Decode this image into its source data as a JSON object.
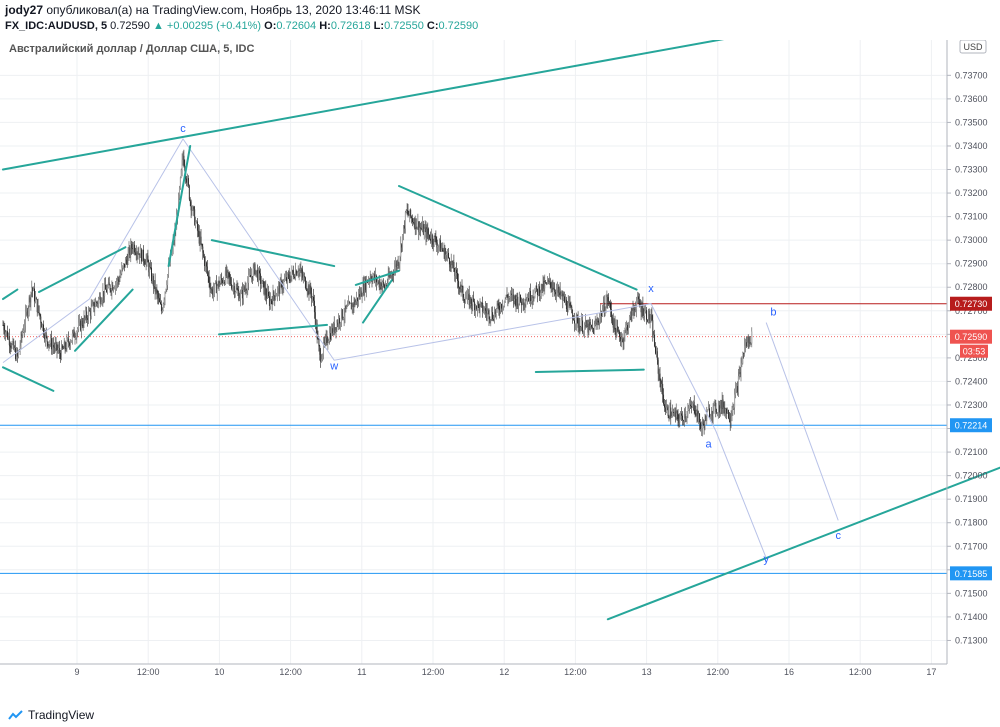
{
  "header": {
    "user": "jody27",
    "published_text": "опубликовал(а) на TradingView.com, Ноябрь 13, 2020 13:46:11 MSK",
    "symbol": "FX_IDC:AUDUSD, 5",
    "last": "0.72590",
    "change": "▲ +0.00295 (+0.41%)",
    "o_label": "O:",
    "o": "0.72604",
    "h_label": "H:",
    "h": "0.72618",
    "l_label": "L:",
    "l": "0.72550",
    "c_label": "C:",
    "c": "0.72590"
  },
  "footer": {
    "brand": "TradingView"
  },
  "chart_data": {
    "type": "candlestick",
    "title": "Австралийский доллар / Доллар США, 5, IDC",
    "currency_badge": "USD",
    "ylim": [
      0.712,
      0.7385
    ],
    "y_ticks": [
      "0.71300",
      "0.71400",
      "0.71500",
      "0.71600",
      "0.71700",
      "0.71800",
      "0.71900",
      "0.72000",
      "0.72100",
      "0.72200",
      "0.72300",
      "0.72400",
      "0.72500",
      "0.72600",
      "0.72700",
      "0.72800",
      "0.72900",
      "0.73000",
      "0.73100",
      "0.73200",
      "0.73300",
      "0.73400",
      "0.73500",
      "0.73600",
      "0.73700"
    ],
    "x_ticks": [
      "9",
      "12:00",
      "10",
      "12:00",
      "11",
      "12:00",
      "12",
      "12:00",
      "13",
      "12:00",
      "16",
      "12:00",
      "17"
    ],
    "grid": true,
    "price_overview": [
      [
        0,
        0.7264
      ],
      [
        2,
        0.725
      ],
      [
        4,
        0.728
      ],
      [
        6,
        0.7258
      ],
      [
        8,
        0.7252
      ],
      [
        11,
        0.7265
      ],
      [
        14,
        0.7278
      ],
      [
        16,
        0.7283
      ],
      [
        18,
        0.7298
      ],
      [
        20,
        0.7291
      ],
      [
        22,
        0.727
      ],
      [
        24,
        0.7305
      ],
      [
        25,
        0.7336
      ],
      [
        26,
        0.7317
      ],
      [
        27,
        0.7304
      ],
      [
        29,
        0.7278
      ],
      [
        31,
        0.7285
      ],
      [
        33,
        0.7276
      ],
      [
        35,
        0.7288
      ],
      [
        37,
        0.7274
      ],
      [
        39,
        0.7282
      ],
      [
        41,
        0.7288
      ],
      [
        43,
        0.7276
      ],
      [
        44,
        0.725
      ],
      [
        45,
        0.7258
      ],
      [
        47,
        0.7268
      ],
      [
        49,
        0.7274
      ],
      [
        51,
        0.7285
      ],
      [
        53,
        0.728
      ],
      [
        55,
        0.7292
      ],
      [
        56,
        0.7312
      ],
      [
        58,
        0.7305
      ],
      [
        60,
        0.73
      ],
      [
        62,
        0.7292
      ],
      [
        64,
        0.7276
      ],
      [
        66,
        0.7272
      ],
      [
        68,
        0.7268
      ],
      [
        70,
        0.7276
      ],
      [
        72,
        0.7274
      ],
      [
        74,
        0.7278
      ],
      [
        76,
        0.7282
      ],
      [
        78,
        0.7274
      ],
      [
        80,
        0.7264
      ],
      [
        82,
        0.7262
      ],
      [
        84,
        0.7275
      ],
      [
        85,
        0.7262
      ],
      [
        86,
        0.7258
      ],
      [
        88,
        0.7274
      ],
      [
        90,
        0.7266
      ],
      [
        91,
        0.7245
      ],
      [
        92,
        0.7228
      ],
      [
        94,
        0.7224
      ],
      [
        96,
        0.723
      ],
      [
        97,
        0.722
      ],
      [
        98,
        0.7227
      ],
      [
        100,
        0.723
      ],
      [
        101,
        0.7225
      ],
      [
        102,
        0.7238
      ],
      [
        103,
        0.7255
      ],
      [
        104,
        0.7259
      ]
    ],
    "annotations": [
      {
        "label": "c",
        "x": 25,
        "y": 0.7346
      },
      {
        "label": "w",
        "x": 46,
        "y": 0.7245
      },
      {
        "label": "x",
        "x": 90,
        "y": 0.7278
      },
      {
        "label": "b",
        "x": 107,
        "y": 0.7268
      },
      {
        "label": "a",
        "x": 98,
        "y": 0.7212
      },
      {
        "label": "c",
        "x": 116,
        "y": 0.7173
      },
      {
        "label": "y",
        "x": 106,
        "y": 0.7163
      }
    ],
    "trend_lines": [
      {
        "from": [
          0,
          0.733
        ],
        "to": [
          103,
          0.7387
        ]
      },
      {
        "from": [
          84,
          0.7139
        ],
        "to": [
          139,
          0.7204
        ]
      },
      {
        "from": [
          55,
          0.7323
        ],
        "to": [
          88,
          0.7279
        ]
      },
      {
        "from": [
          74,
          0.7244
        ],
        "to": [
          89,
          0.7245
        ]
      },
      {
        "from": [
          29,
          0.73
        ],
        "to": [
          46,
          0.7289
        ]
      },
      {
        "from": [
          30,
          0.726
        ],
        "to": [
          45,
          0.7264
        ]
      },
      {
        "from": [
          0,
          0.7246
        ],
        "to": [
          7,
          0.7236
        ]
      },
      {
        "from": [
          0,
          0.7275
        ],
        "to": [
          2,
          0.7279
        ]
      },
      {
        "from": [
          5,
          0.7278
        ],
        "to": [
          17,
          0.7297
        ]
      },
      {
        "from": [
          10,
          0.7253
        ],
        "to": [
          18,
          0.7279
        ]
      },
      {
        "from": [
          23,
          0.7289
        ],
        "to": [
          26,
          0.734
        ]
      },
      {
        "from": [
          49,
          0.7281
        ],
        "to": [
          55,
          0.7287
        ]
      },
      {
        "from": [
          50,
          0.7265
        ],
        "to": [
          54,
          0.7283
        ]
      }
    ],
    "wave_path": [
      [
        0,
        0.7248
      ],
      [
        12,
        0.7275
      ],
      [
        25,
        0.7343
      ],
      [
        46,
        0.7249
      ],
      [
        90,
        0.7273
      ],
      [
        99,
        0.7219
      ],
      [
        106,
        0.7165
      ]
    ],
    "projection_path": [
      [
        106,
        0.7265
      ],
      [
        116,
        0.7181
      ]
    ],
    "horizontal_levels": [
      {
        "price": 0.72214,
        "label": "0.72214",
        "color": "#2196f3"
      },
      {
        "price": 0.71585,
        "label": "0.71585",
        "color": "#2196f3"
      },
      {
        "price": 0.7273,
        "label": "0.72730",
        "color": "#b71c1c"
      }
    ],
    "last_price": {
      "price": 0.7259,
      "label": "0.72590",
      "countdown": "03:53"
    }
  }
}
